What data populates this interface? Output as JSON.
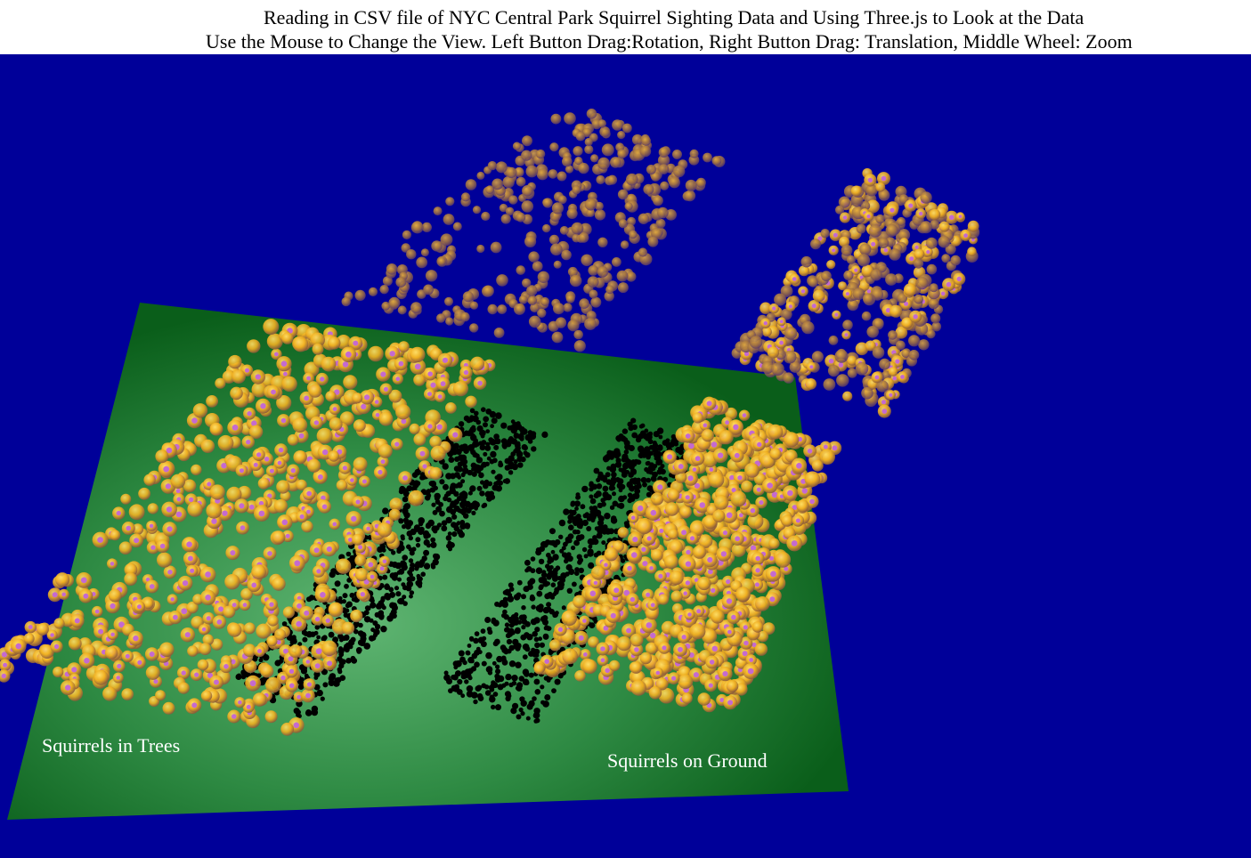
{
  "header": {
    "line1": "Reading in CSV file of NYC Central Park Squirrel Sighting Data and Using Three.js to Look at the Data",
    "line2": "Use the Mouse to Change the View. Left Button Drag:Rotation, Right Button Drag: Translation, Middle Wheel: Zoom"
  },
  "scene": {
    "background_color": "#000099",
    "ground_plane_color": "#0b6a1c",
    "ground_plane_highlight": "#5bb06e",
    "labels": {
      "trees": "Squirrels in Trees",
      "ground": "Squirrels on Ground"
    },
    "marker_colors": {
      "sphere": "#f2b422",
      "sphere_core": "#c86fd0",
      "sphere_shadow": "#7a4a7a",
      "shadow_point": "#000000"
    }
  }
}
